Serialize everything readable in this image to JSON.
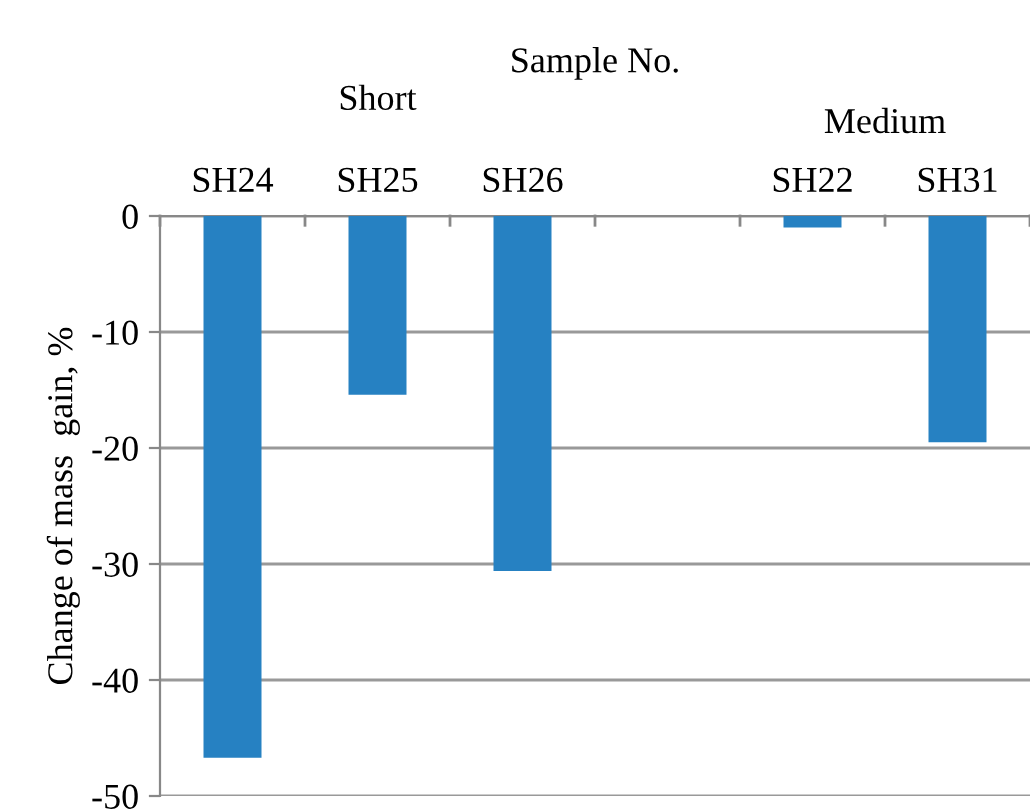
{
  "chart_data": {
    "type": "bar",
    "xlabel": "Sample No.",
    "ylabel": "Change of mass  gain, %",
    "categories": [
      "SH24",
      "SH25",
      "SH26",
      null,
      "SH22",
      "SH31"
    ],
    "values": [
      -46.7,
      -15.4,
      -30.6,
      null,
      -1.0,
      -19.5
    ],
    "color": "#2681c2",
    "ylim": [
      -50,
      0
    ],
    "yticks": [
      0,
      {
        "value": -10,
        "label": "-10"
      },
      {
        "value": -20,
        "label": "-20"
      },
      {
        "value": -30,
        "label": "-30"
      },
      {
        "value": -40,
        "label": "-40"
      },
      {
        "value": -50,
        "label": "-50"
      }
    ],
    "grid": "y",
    "annotations": [
      "Short",
      "Medium"
    ]
  }
}
